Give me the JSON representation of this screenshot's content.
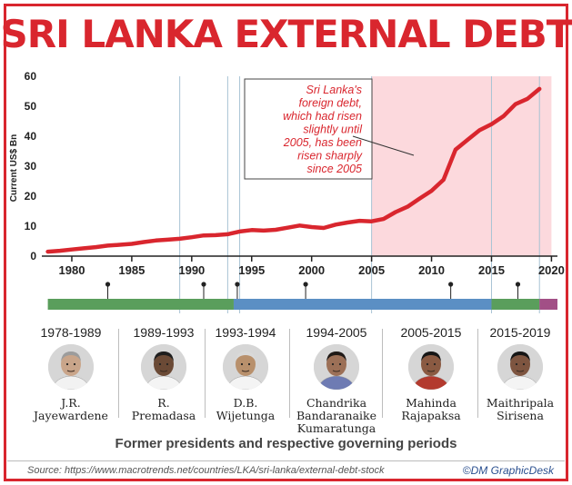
{
  "title": "SRI LANKA EXTERNAL DEBT",
  "chart_data": {
    "type": "line",
    "ylabel": "Current US$ Bn",
    "ylim": [
      0,
      60
    ],
    "yticks": [
      0,
      10,
      20,
      30,
      40,
      50,
      60
    ],
    "xlim": [
      1977.5,
      2020.5
    ],
    "xticks": [
      1980,
      1985,
      1990,
      1995,
      2000,
      2005,
      2010,
      2015,
      2020
    ],
    "grid": "vertical lines at tenure boundaries",
    "highlight_region": [
      2005,
      2020
    ],
    "annotation": "Sri Lanka's foreign debt, which had risen slightly until 2005, has been risen sharply since 2005",
    "series": [
      {
        "color": "#d9262e",
        "x": [
          1978,
          1979,
          1980,
          1981,
          1982,
          1983,
          1984,
          1985,
          1986,
          1987,
          1988,
          1989,
          1990,
          1991,
          1992,
          1993,
          1994,
          1995,
          1996,
          1997,
          1998,
          1999,
          2000,
          2001,
          2002,
          2003,
          2004,
          2005,
          2006,
          2007,
          2008,
          2009,
          2010,
          2011,
          2012,
          2013,
          2014,
          2015,
          2016,
          2017,
          2018,
          2019
        ],
        "values": [
          1.5,
          1.8,
          2.2,
          2.6,
          3.0,
          3.5,
          3.8,
          4.1,
          4.7,
          5.2,
          5.5,
          5.8,
          6.3,
          6.9,
          7.0,
          7.3,
          8.2,
          8.7,
          8.5,
          8.8,
          9.5,
          10.2,
          9.7,
          9.4,
          10.5,
          11.2,
          11.8,
          11.6,
          12.4,
          14.7,
          16.5,
          19.2,
          21.8,
          25.5,
          35.5,
          38.8,
          42.0,
          44.0,
          46.7,
          50.7,
          52.5,
          55.8
        ]
      }
    ],
    "tenure_bar": [
      {
        "from": 1978,
        "to": 1993.5,
        "color": "#5a9e5c"
      },
      {
        "from": 1993.5,
        "to": 2015,
        "color": "#5b8fc4"
      },
      {
        "from": 2015,
        "to": 2019,
        "color": "#5a9e5c"
      },
      {
        "from": 2019,
        "to": 2020.5,
        "color": "#a24f86"
      }
    ],
    "tenure_markers": [
      1983,
      1991,
      1993.8,
      1999.5,
      2011.6,
      2017.2
    ]
  },
  "presidents": [
    {
      "period": "1978-1989",
      "name_line1": "J.R.",
      "name_line2": "Jayewardene",
      "name_line3": "",
      "skin": "#c9a58a",
      "hair": "#9c9c9c",
      "shirt": "#f2f2f2"
    },
    {
      "period": "1989-1993",
      "name_line1": "R.",
      "name_line2": "Premadasa",
      "name_line3": "",
      "skin": "#6b4a36",
      "hair": "#1e1e1e",
      "shirt": "#f4f4f4"
    },
    {
      "period": "1993-1994",
      "name_line1": "D.B.",
      "name_line2": "Wijetunga",
      "name_line3": "",
      "skin": "#b8906c",
      "hair": "#d9d9d9",
      "shirt": "#f4f4f4"
    },
    {
      "period": "1994-2005",
      "name_line1": "Chandrika",
      "name_line2": "Bandaranaike",
      "name_line3": "Kumaratunga",
      "skin": "#9c7057",
      "hair": "#1f1a17",
      "shirt": "#6e7bb3"
    },
    {
      "period": "2005-2015",
      "name_line1": "Mahinda",
      "name_line2": "Rajapaksa",
      "name_line3": "",
      "skin": "#8a5a42",
      "hair": "#161616",
      "shirt": "#b33a2e"
    },
    {
      "period": "2015-2019",
      "name_line1": "Maithripala",
      "name_line2": "Sirisena",
      "name_line3": "",
      "skin": "#7e5540",
      "hair": "#161616",
      "shirt": "#f4f4f4"
    }
  ],
  "caption": "Former presidents and respective governing periods",
  "source": "Source: https://www.macrotrends.net/countries/LKA/sri-lanka/external-debt-stock",
  "credit": "©DM GraphicDesk",
  "colors": {
    "accent": "#d9262e",
    "highlight": "#fcd9dd",
    "grid": "#a8c3d4"
  }
}
